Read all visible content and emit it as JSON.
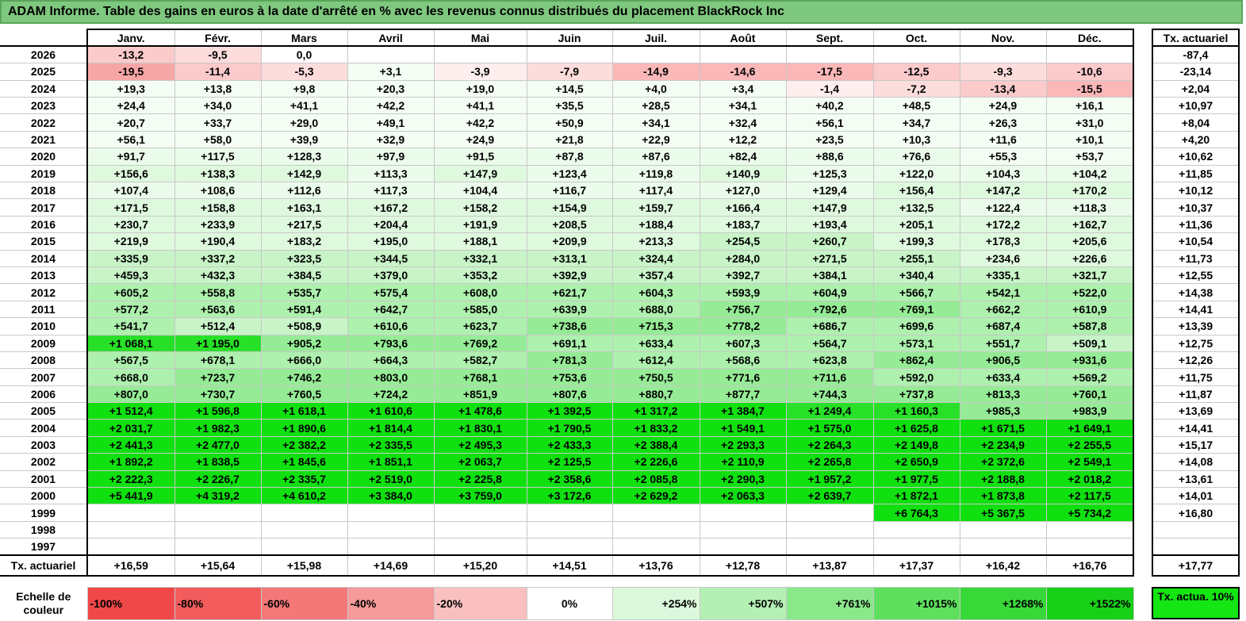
{
  "title": "ADAM Informe. Table des gains en euros à la date d'arrêté en % avec les revenus connus distribués du placement BlackRock Inc",
  "months": [
    "Janv.",
    "Févr.",
    "Mars",
    "Avril",
    "Mai",
    "Juin",
    "Juil.",
    "Août",
    "Sept.",
    "Oct.",
    "Nov.",
    "Déc."
  ],
  "rate_header": "Tx. actuariel",
  "rows": [
    {
      "year": "2026",
      "values": [
        "-13,2",
        "-9,5",
        "0,0",
        "",
        "",
        "",
        "",
        "",
        "",
        "",
        "",
        ""
      ],
      "rate": "-87,4"
    },
    {
      "year": "2025",
      "values": [
        "-19,5",
        "-11,4",
        "-5,3",
        "+3,1",
        "-3,9",
        "-7,9",
        "-14,9",
        "-14,6",
        "-17,5",
        "-12,5",
        "-9,3",
        "-10,6"
      ],
      "rate": "-23,14"
    },
    {
      "year": "2024",
      "values": [
        "+19,3",
        "+13,8",
        "+9,8",
        "+20,3",
        "+19,0",
        "+14,5",
        "+4,0",
        "+3,4",
        "-1,4",
        "-7,2",
        "-13,4",
        "-15,5"
      ],
      "rate": "+2,04"
    },
    {
      "year": "2023",
      "values": [
        "+24,4",
        "+34,0",
        "+41,1",
        "+42,2",
        "+41,1",
        "+35,5",
        "+28,5",
        "+34,1",
        "+40,2",
        "+48,5",
        "+24,9",
        "+16,1"
      ],
      "rate": "+10,97"
    },
    {
      "year": "2022",
      "values": [
        "+20,7",
        "+33,7",
        "+29,0",
        "+49,1",
        "+42,2",
        "+50,9",
        "+34,1",
        "+32,4",
        "+56,1",
        "+34,7",
        "+26,3",
        "+31,0"
      ],
      "rate": "+8,04"
    },
    {
      "year": "2021",
      "values": [
        "+56,1",
        "+58,0",
        "+39,9",
        "+32,9",
        "+24,9",
        "+21,8",
        "+22,9",
        "+12,2",
        "+23,5",
        "+10,3",
        "+11,6",
        "+10,1"
      ],
      "rate": "+4,20"
    },
    {
      "year": "2020",
      "values": [
        "+91,7",
        "+117,5",
        "+128,3",
        "+97,9",
        "+91,5",
        "+87,8",
        "+87,6",
        "+82,4",
        "+88,6",
        "+76,6",
        "+55,3",
        "+53,7"
      ],
      "rate": "+10,62"
    },
    {
      "year": "2019",
      "values": [
        "+156,6",
        "+138,3",
        "+142,9",
        "+113,3",
        "+147,9",
        "+123,4",
        "+119,8",
        "+140,9",
        "+125,3",
        "+122,0",
        "+104,3",
        "+104,2"
      ],
      "rate": "+11,85"
    },
    {
      "year": "2018",
      "values": [
        "+107,4",
        "+108,6",
        "+112,6",
        "+117,3",
        "+104,4",
        "+116,7",
        "+117,4",
        "+127,0",
        "+129,4",
        "+156,4",
        "+147,2",
        "+170,2"
      ],
      "rate": "+10,12"
    },
    {
      "year": "2017",
      "values": [
        "+171,5",
        "+158,8",
        "+163,1",
        "+167,2",
        "+158,2",
        "+154,9",
        "+159,7",
        "+166,4",
        "+147,9",
        "+132,5",
        "+122,4",
        "+118,3"
      ],
      "rate": "+10,37"
    },
    {
      "year": "2016",
      "values": [
        "+230,7",
        "+233,9",
        "+217,5",
        "+204,4",
        "+191,9",
        "+208,5",
        "+188,4",
        "+183,7",
        "+193,4",
        "+205,1",
        "+172,2",
        "+162,7"
      ],
      "rate": "+11,36"
    },
    {
      "year": "2015",
      "values": [
        "+219,9",
        "+190,4",
        "+183,2",
        "+195,0",
        "+188,1",
        "+209,9",
        "+213,3",
        "+254,5",
        "+260,7",
        "+199,3",
        "+178,3",
        "+205,6"
      ],
      "rate": "+10,54"
    },
    {
      "year": "2014",
      "values": [
        "+335,9",
        "+337,2",
        "+323,5",
        "+344,5",
        "+332,1",
        "+313,1",
        "+324,4",
        "+284,0",
        "+271,5",
        "+255,1",
        "+234,6",
        "+226,6"
      ],
      "rate": "+11,73"
    },
    {
      "year": "2013",
      "values": [
        "+459,3",
        "+432,3",
        "+384,5",
        "+379,0",
        "+353,2",
        "+392,9",
        "+357,4",
        "+392,7",
        "+384,1",
        "+340,4",
        "+335,1",
        "+321,7"
      ],
      "rate": "+12,55"
    },
    {
      "year": "2012",
      "values": [
        "+605,2",
        "+558,8",
        "+535,7",
        "+575,4",
        "+608,0",
        "+621,7",
        "+604,3",
        "+593,9",
        "+604,9",
        "+566,7",
        "+542,1",
        "+522,0"
      ],
      "rate": "+14,38"
    },
    {
      "year": "2011",
      "values": [
        "+577,2",
        "+563,6",
        "+591,4",
        "+642,7",
        "+585,0",
        "+639,9",
        "+688,0",
        "+756,7",
        "+792,6",
        "+769,1",
        "+662,2",
        "+610,9"
      ],
      "rate": "+14,41"
    },
    {
      "year": "2010",
      "values": [
        "+541,7",
        "+512,4",
        "+508,9",
        "+610,6",
        "+623,7",
        "+738,6",
        "+715,3",
        "+778,2",
        "+686,7",
        "+699,6",
        "+687,4",
        "+587,8"
      ],
      "rate": "+13,39"
    },
    {
      "year": "2009",
      "values": [
        "+1 068,1",
        "+1 195,0",
        "+905,2",
        "+793,6",
        "+769,2",
        "+691,1",
        "+633,4",
        "+607,3",
        "+564,7",
        "+573,1",
        "+551,7",
        "+509,1"
      ],
      "rate": "+12,75"
    },
    {
      "year": "2008",
      "values": [
        "+567,5",
        "+678,1",
        "+666,0",
        "+664,3",
        "+582,7",
        "+781,3",
        "+612,4",
        "+568,6",
        "+623,8",
        "+862,4",
        "+906,5",
        "+931,6"
      ],
      "rate": "+12,26"
    },
    {
      "year": "2007",
      "values": [
        "+668,0",
        "+723,7",
        "+746,2",
        "+803,0",
        "+768,1",
        "+753,6",
        "+750,5",
        "+771,6",
        "+711,6",
        "+592,0",
        "+633,4",
        "+569,2"
      ],
      "rate": "+11,75"
    },
    {
      "year": "2006",
      "values": [
        "+807,0",
        "+730,7",
        "+760,5",
        "+724,2",
        "+851,9",
        "+807,6",
        "+880,7",
        "+877,7",
        "+744,3",
        "+737,8",
        "+813,3",
        "+760,1"
      ],
      "rate": "+11,87"
    },
    {
      "year": "2005",
      "values": [
        "+1 512,4",
        "+1 596,8",
        "+1 618,1",
        "+1 610,6",
        "+1 478,6",
        "+1 392,5",
        "+1 317,2",
        "+1 384,7",
        "+1 249,4",
        "+1 160,3",
        "+985,3",
        "+983,9"
      ],
      "rate": "+13,69"
    },
    {
      "year": "2004",
      "values": [
        "+2 031,7",
        "+1 982,3",
        "+1 890,6",
        "+1 814,4",
        "+1 830,1",
        "+1 790,5",
        "+1 833,2",
        "+1 549,1",
        "+1 575,0",
        "+1 625,8",
        "+1 671,5",
        "+1 649,1"
      ],
      "rate": "+14,41"
    },
    {
      "year": "2003",
      "values": [
        "+2 441,3",
        "+2 477,0",
        "+2 382,2",
        "+2 335,5",
        "+2 495,3",
        "+2 433,3",
        "+2 388,4",
        "+2 293,3",
        "+2 264,3",
        "+2 149,8",
        "+2 234,9",
        "+2 255,5"
      ],
      "rate": "+15,17"
    },
    {
      "year": "2002",
      "values": [
        "+1 892,2",
        "+1 838,5",
        "+1 845,6",
        "+1 851,1",
        "+2 063,7",
        "+2 125,5",
        "+2 226,6",
        "+2 110,9",
        "+2 265,8",
        "+2 650,9",
        "+2 372,6",
        "+2 549,1"
      ],
      "rate": "+14,08"
    },
    {
      "year": "2001",
      "values": [
        "+2 222,3",
        "+2 226,7",
        "+2 335,7",
        "+2 519,0",
        "+2 225,8",
        "+2 358,6",
        "+2 085,8",
        "+2 290,3",
        "+1 957,2",
        "+1 977,5",
        "+2 188,8",
        "+2 018,2"
      ],
      "rate": "+13,61"
    },
    {
      "year": "2000",
      "values": [
        "+5 441,9",
        "+4 319,2",
        "+4 610,2",
        "+3 384,0",
        "+3 759,0",
        "+3 172,6",
        "+2 629,2",
        "+2 063,3",
        "+2 639,7",
        "+1 872,1",
        "+1 873,8",
        "+2 117,5"
      ],
      "rate": "+14,01"
    },
    {
      "year": "1999",
      "values": [
        "",
        "",
        "",
        "",
        "",
        "",
        "",
        "",
        "",
        "+6 764,3",
        "+5 367,5",
        "+5 734,2"
      ],
      "rate": "+16,80"
    },
    {
      "year": "1998",
      "values": [
        "",
        "",
        "",
        "",
        "",
        "",
        "",
        "",
        "",
        "",
        "",
        ""
      ],
      "rate": ""
    },
    {
      "year": "1997",
      "values": [
        "",
        "",
        "",
        "",
        "",
        "",
        "",
        "",
        "",
        "",
        "",
        ""
      ],
      "rate": ""
    }
  ],
  "summary": {
    "label": "Tx. actuariel",
    "values": [
      "+16,59",
      "+15,64",
      "+15,98",
      "+14,69",
      "+15,20",
      "+14,51",
      "+13,76",
      "+12,78",
      "+13,87",
      "+17,37",
      "+16,42",
      "+16,76"
    ],
    "rate": "+17,77"
  },
  "scale": {
    "label": "Echelle de couleur",
    "steps": [
      "-100%",
      "-80%",
      "-60%",
      "-40%",
      "-20%",
      "0%",
      "+254%",
      "+507%",
      "+761%",
      "+1015%",
      "+1268%",
      "+1522%"
    ],
    "colors": [
      "#f04848",
      "#f25c5c",
      "#f47878",
      "#f79a9a",
      "#fac0c0",
      "#ffffff",
      "#dcf8dc",
      "#b4f0b4",
      "#8ae88a",
      "#5ee05e",
      "#38d838",
      "#18d018"
    ],
    "legend_label": "Tx. actua. 10%",
    "legend_color": "#14e614"
  }
}
